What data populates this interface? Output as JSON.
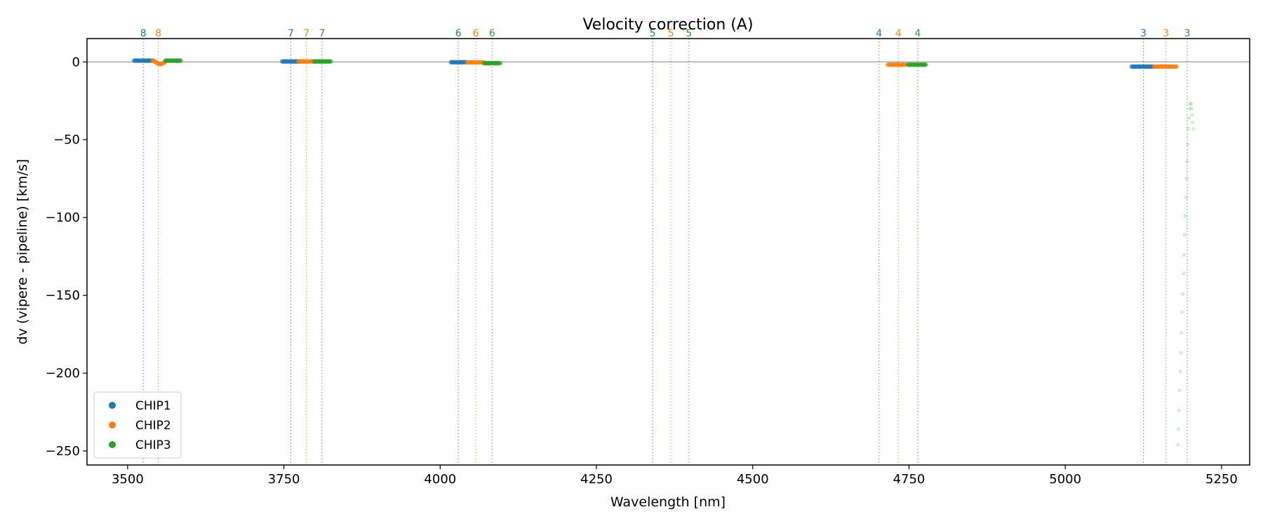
{
  "chart_data": {
    "type": "scatter",
    "title": "Velocity correction (A)",
    "xlabel": "Wavelength [nm]",
    "ylabel": "dv (vipere - pipeline) [km/s]",
    "xlim": [
      3435,
      5295
    ],
    "ylim": [
      -259,
      15
    ],
    "xticks": [
      3500,
      3750,
      4000,
      4250,
      4500,
      4750,
      5000,
      5250
    ],
    "yticks": [
      0,
      -50,
      -100,
      -150,
      -200,
      -250
    ],
    "xtick_labels": [
      "3500",
      "3750",
      "4000",
      "4250",
      "4500",
      "4750",
      "5000",
      "5250"
    ],
    "ytick_labels": [
      "0",
      "−50",
      "−100",
      "−150",
      "−200",
      "−250"
    ],
    "zero_line": true,
    "grid": false,
    "legend": {
      "position": "lower-left",
      "entries": [
        "CHIP1",
        "CHIP2",
        "CHIP3"
      ]
    },
    "colors": {
      "CHIP1": "#1f77b4",
      "CHIP2": "#ff7f0e",
      "CHIP3": "#2ca02c"
    },
    "order_markers": [
      {
        "x": 3525,
        "label": "8",
        "series": "CHIP1"
      },
      {
        "x": 3549,
        "label": "8",
        "series": "CHIP2"
      },
      {
        "x": 3761,
        "label": "7",
        "series": "CHIP1"
      },
      {
        "x": 3786,
        "label": "7",
        "series": "CHIP2"
      },
      {
        "x": 3811,
        "label": "7",
        "series": "CHIP3"
      },
      {
        "x": 4029,
        "label": "6",
        "series": "CHIP1"
      },
      {
        "x": 4057,
        "label": "6",
        "series": "CHIP2"
      },
      {
        "x": 4083,
        "label": "6",
        "series": "CHIP3"
      },
      {
        "x": 4340,
        "label": "5",
        "series": "CHIP1"
      },
      {
        "x": 4369,
        "label": "5",
        "series": "CHIP2"
      },
      {
        "x": 4398,
        "label": "5",
        "series": "CHIP3"
      },
      {
        "x": 4702,
        "label": "4",
        "series": "CHIP1"
      },
      {
        "x": 4733,
        "label": "4",
        "series": "CHIP2"
      },
      {
        "x": 4764,
        "label": "4",
        "series": "CHIP3"
      },
      {
        "x": 5125,
        "label": "3",
        "series": "CHIP1"
      },
      {
        "x": 5161,
        "label": "3",
        "series": "CHIP2"
      },
      {
        "x": 5195,
        "label": "3",
        "series": "CHIP3"
      }
    ],
    "series": [
      {
        "name": "CHIP1",
        "segments": [
          {
            "x_start": 3510,
            "x_end": 3540,
            "y": 0.8
          },
          {
            "x_start": 3747,
            "x_end": 3775,
            "y": 0.3
          },
          {
            "x_start": 4017,
            "x_end": 4043,
            "y": -0.2
          },
          {
            "x_start": 5106,
            "x_end": 5142,
            "y": -3.0
          }
        ]
      },
      {
        "name": "CHIP2",
        "segments": [
          {
            "x_start": 3540,
            "x_end": 3560,
            "y_curve": [
              1.0,
              0.2,
              -1.0,
              -1.5,
              -1.0,
              0.0
            ]
          },
          {
            "x_start": 3773,
            "x_end": 3800,
            "y": 0.3
          },
          {
            "x_start": 4043,
            "x_end": 4070,
            "y": -0.3
          },
          {
            "x_start": 4716,
            "x_end": 4745,
            "y": -1.8
          },
          {
            "x_start": 5142,
            "x_end": 5178,
            "y": -3.0
          }
        ]
      },
      {
        "name": "CHIP3",
        "segments": [
          {
            "x_start": 3560,
            "x_end": 3585,
            "y": 0.8
          },
          {
            "x_start": 3798,
            "x_end": 3825,
            "y": 0.3
          },
          {
            "x_start": 4070,
            "x_end": 4096,
            "y": -0.8
          },
          {
            "x_start": 4748,
            "x_end": 4777,
            "y": -1.8
          }
        ],
        "faint_points": {
          "x": [
            5180,
            5181,
            5182,
            5183,
            5184,
            5185,
            5186,
            5187,
            5188,
            5189,
            5190,
            5191,
            5192,
            5193,
            5194,
            5195,
            5196,
            5197,
            5198,
            5199,
            5200,
            5201,
            5202,
            5203,
            5204,
            5205
          ],
          "y": [
            -246,
            -236,
            -224,
            -211,
            -199,
            -187,
            -174,
            -161,
            -149,
            -136,
            -124,
            -111,
            -99,
            -87,
            -75,
            -64,
            -53,
            -43,
            -36,
            -30,
            -27,
            -27,
            -30,
            -34,
            -39,
            -43
          ]
        }
      }
    ]
  }
}
